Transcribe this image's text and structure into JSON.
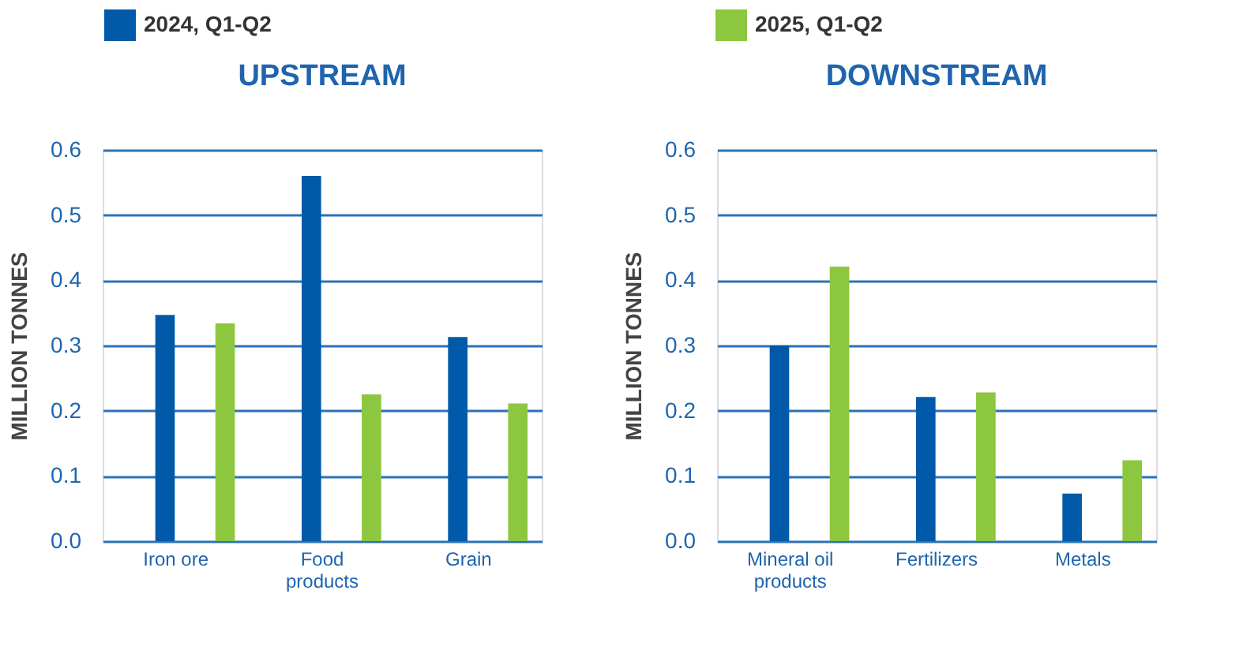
{
  "chart_data": [
    {
      "type": "bar",
      "title": "UPSTREAM",
      "ylabel": "MILLION TONNES",
      "categories": [
        "Iron ore",
        "Food products",
        "Grain"
      ],
      "series": [
        {
          "name": "2024, Q1-Q2",
          "color": "#005aa9",
          "values": [
            0.347,
            0.56,
            0.313
          ]
        },
        {
          "name": "2025, Q1-Q2",
          "color": "#8dc63f",
          "values": [
            0.334,
            0.225,
            0.211
          ]
        }
      ],
      "ylim": [
        0,
        0.6
      ],
      "yticks": [
        {
          "value": 0,
          "label": "0.0"
        },
        0.1,
        0.2,
        0.3,
        0.4,
        0.5,
        0.6
      ],
      "grid": "y",
      "legend": "top"
    },
    {
      "type": "bar",
      "title": "DOWNSTREAM",
      "ylabel": "MILLION TONNES",
      "categories": [
        "Mineral oil products",
        "Fertilizers",
        "Metals"
      ],
      "series": [
        {
          "name": "2024, Q1-Q2",
          "color": "#005aa9",
          "values": [
            0.3,
            0.221,
            0.073
          ]
        },
        {
          "name": "2025, Q1-Q2",
          "color": "#8dc63f",
          "values": [
            0.421,
            0.228,
            0.124
          ]
        }
      ],
      "ylim": [
        0,
        0.6
      ],
      "yticks": [
        {
          "value": 0,
          "label": "0.0"
        },
        0.1,
        0.2,
        0.3,
        0.4,
        0.5,
        0.6
      ],
      "grid": "y",
      "legend": "top"
    }
  ]
}
